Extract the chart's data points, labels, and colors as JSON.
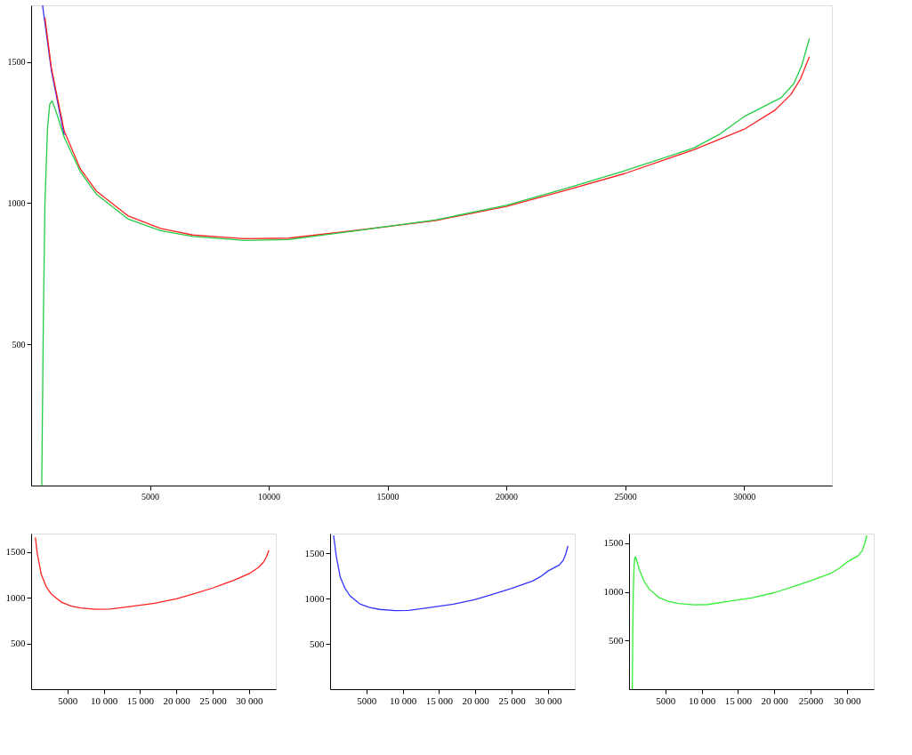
{
  "chart_data": [
    {
      "type": "line",
      "xlim": [
        0,
        33700
      ],
      "ylim": [
        0,
        1700
      ],
      "xticks": [
        5000,
        10000,
        15000,
        20000,
        25000,
        30000
      ],
      "yticks": [
        500,
        1000,
        1500
      ],
      "series": [
        {
          "color": "#3333ff",
          "x": [
            480,
            850,
            1390
          ],
          "values": [
            1700,
            1470,
            1240
          ]
        },
        {
          "color": "#ff2222",
          "x": [
            580,
            850,
            1390,
            2070,
            2740,
            4090,
            5450,
            6800,
            8960,
            10850,
            13550,
            17010,
            20000,
            22450,
            25000,
            27890,
            30000,
            31290,
            31970,
            32380,
            32750
          ],
          "values": [
            1657,
            1479,
            1255,
            1121,
            1043,
            954,
            910,
            887,
            874,
            876,
            902,
            938,
            988,
            1044,
            1105,
            1189,
            1261,
            1328,
            1384,
            1440,
            1518
          ]
        },
        {
          "color": "#22cc44",
          "x": [
            446,
            514,
            580,
            690,
            784,
            880,
            1054,
            1390,
            2070,
            2740,
            4090,
            5450,
            6800,
            8960,
            10850,
            13550,
            17010,
            20000,
            22450,
            25000,
            27890,
            28980,
            30000,
            31560,
            32100,
            32440,
            32750
          ],
          "values": [
            0,
            586,
            999,
            1267,
            1350,
            1362,
            1323,
            1233,
            1111,
            1032,
            943,
            902,
            882,
            868,
            871,
            901,
            940,
            992,
            1050,
            1115,
            1195,
            1244,
            1306,
            1373,
            1423,
            1490,
            1582
          ]
        }
      ]
    },
    {
      "type": "line",
      "xlim": [
        0,
        33700
      ],
      "ylim": [
        0,
        1700
      ],
      "xticks": [
        5000,
        {
          "value": 10000,
          "label": "10 000"
        },
        {
          "value": 15000,
          "label": "15 000"
        },
        {
          "value": 20000,
          "label": "20 000"
        },
        {
          "value": 25000,
          "label": "25 000"
        },
        {
          "value": 30000,
          "label": "30 000"
        }
      ],
      "yticks": [
        500,
        1000,
        1500
      ],
      "series": [
        {
          "color": "#ff2222",
          "x": [
            580,
            850,
            1390,
            2070,
            2740,
            4090,
            5450,
            6800,
            8960,
            10850,
            13550,
            17010,
            20000,
            22450,
            25000,
            27890,
            30000,
            31290,
            31970,
            32380,
            32750
          ],
          "values": [
            1657,
            1479,
            1255,
            1121,
            1043,
            954,
            910,
            887,
            874,
            876,
            902,
            938,
            988,
            1044,
            1105,
            1189,
            1261,
            1328,
            1384,
            1440,
            1518
          ]
        }
      ]
    },
    {
      "type": "line",
      "xlim": [
        0,
        33700
      ],
      "ylim": [
        0,
        1720
      ],
      "xticks": [
        5000,
        {
          "value": 10000,
          "label": "10 000"
        },
        {
          "value": 15000,
          "label": "15 000"
        },
        {
          "value": 20000,
          "label": "20 000"
        },
        {
          "value": 25000,
          "label": "25 000"
        },
        {
          "value": 30000,
          "label": "30 000"
        }
      ],
      "yticks": [
        500,
        1000,
        1500
      ],
      "series": [
        {
          "color": "#3333ff",
          "x": [
            480,
            850,
            1390,
            2070,
            2740,
            4090,
            5450,
            6800,
            8960,
            10850,
            13550,
            17010,
            20000,
            22450,
            25000,
            27890,
            28980,
            30000,
            31560,
            32100,
            32440,
            32750
          ],
          "values": [
            1700,
            1470,
            1240,
            1111,
            1032,
            943,
            902,
            882,
            868,
            871,
            901,
            940,
            992,
            1050,
            1115,
            1195,
            1244,
            1306,
            1373,
            1423,
            1490,
            1582
          ]
        }
      ]
    },
    {
      "type": "line",
      "xlim": [
        0,
        33700
      ],
      "ylim": [
        0,
        1600
      ],
      "xticks": [
        5000,
        {
          "value": 10000,
          "label": "10 000"
        },
        {
          "value": 15000,
          "label": "15 000"
        },
        {
          "value": 20000,
          "label": "20 000"
        },
        {
          "value": 25000,
          "label": "25000"
        },
        {
          "value": 30000,
          "label": "30 000"
        }
      ],
      "yticks": [
        500,
        1000,
        1500
      ],
      "series": [
        {
          "color": "#33ee33",
          "x": [
            446,
            514,
            580,
            690,
            784,
            880,
            1054,
            1390,
            2070,
            2740,
            4090,
            5450,
            6800,
            8960,
            10850,
            13550,
            17010,
            20000,
            22450,
            25000,
            27890,
            28980,
            30000,
            31560,
            32100,
            32440,
            32750
          ],
          "values": [
            0,
            586,
            999,
            1267,
            1350,
            1362,
            1323,
            1233,
            1111,
            1032,
            943,
            902,
            882,
            868,
            871,
            901,
            940,
            992,
            1050,
            1115,
            1195,
            1244,
            1306,
            1373,
            1423,
            1490,
            1582
          ]
        }
      ]
    }
  ]
}
